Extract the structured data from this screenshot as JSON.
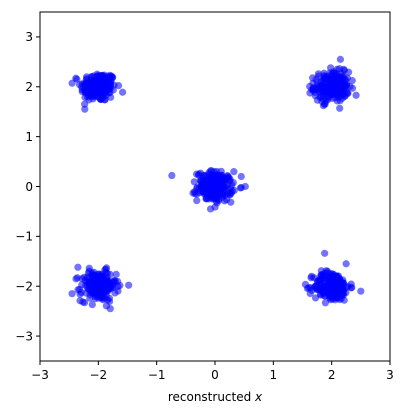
{
  "chart_data": {
    "type": "scatter",
    "title": "",
    "xlabel_text": "reconstructed ",
    "xlabel_var": "x",
    "ylabel": "",
    "xlim": [
      -3,
      3
    ],
    "ylim": [
      -3.5,
      3.5
    ],
    "x_ticks": [
      -3,
      -2,
      -1,
      0,
      1,
      2,
      3
    ],
    "y_ticks": [
      -3,
      -2,
      -1,
      0,
      1,
      2,
      3
    ],
    "grid": false,
    "legend": "none",
    "point_color": "#0000ff",
    "point_opacity": 0.55,
    "clusters": [
      {
        "center": [
          -2,
          2
        ],
        "std": 0.15,
        "count": 220
      },
      {
        "center": [
          2,
          2
        ],
        "std": 0.15,
        "count": 220
      },
      {
        "center": [
          0,
          0
        ],
        "std": 0.15,
        "count": 220
      },
      {
        "center": [
          -2,
          -2
        ],
        "std": 0.15,
        "count": 220
      },
      {
        "center": [
          2,
          -2
        ],
        "std": 0.15,
        "count": 220
      }
    ],
    "outliers": [
      {
        "x": -0.74,
        "y": 0.22
      },
      {
        "x": 0.52,
        "y": 0.0
      },
      {
        "x": -2.35,
        "y": -1.62
      },
      {
        "x": -1.48,
        "y": -1.98
      },
      {
        "x": 1.88,
        "y": -1.34
      },
      {
        "x": 2.5,
        "y": -2.1
      },
      {
        "x": 2.15,
        "y": 2.55
      },
      {
        "x": -2.45,
        "y": -2.15
      }
    ]
  }
}
